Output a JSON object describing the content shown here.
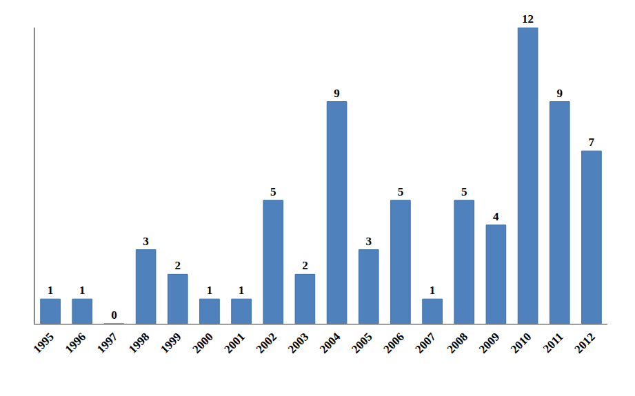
{
  "chart_data": {
    "type": "bar",
    "categories": [
      "1995",
      "1996",
      "1997",
      "1998",
      "1999",
      "2000",
      "2001",
      "2002",
      "2003",
      "2004",
      "2005",
      "2006",
      "2007",
      "2008",
      "2009",
      "2010",
      "2011",
      "2012"
    ],
    "values": [
      1,
      1,
      0,
      3,
      2,
      1,
      1,
      5,
      2,
      9,
      3,
      5,
      1,
      5,
      4,
      12,
      9,
      7
    ],
    "color": "#4f81bd",
    "ylim": [
      0,
      12
    ],
    "data_labels": true,
    "tick_labels": "x",
    "grid": false
  }
}
